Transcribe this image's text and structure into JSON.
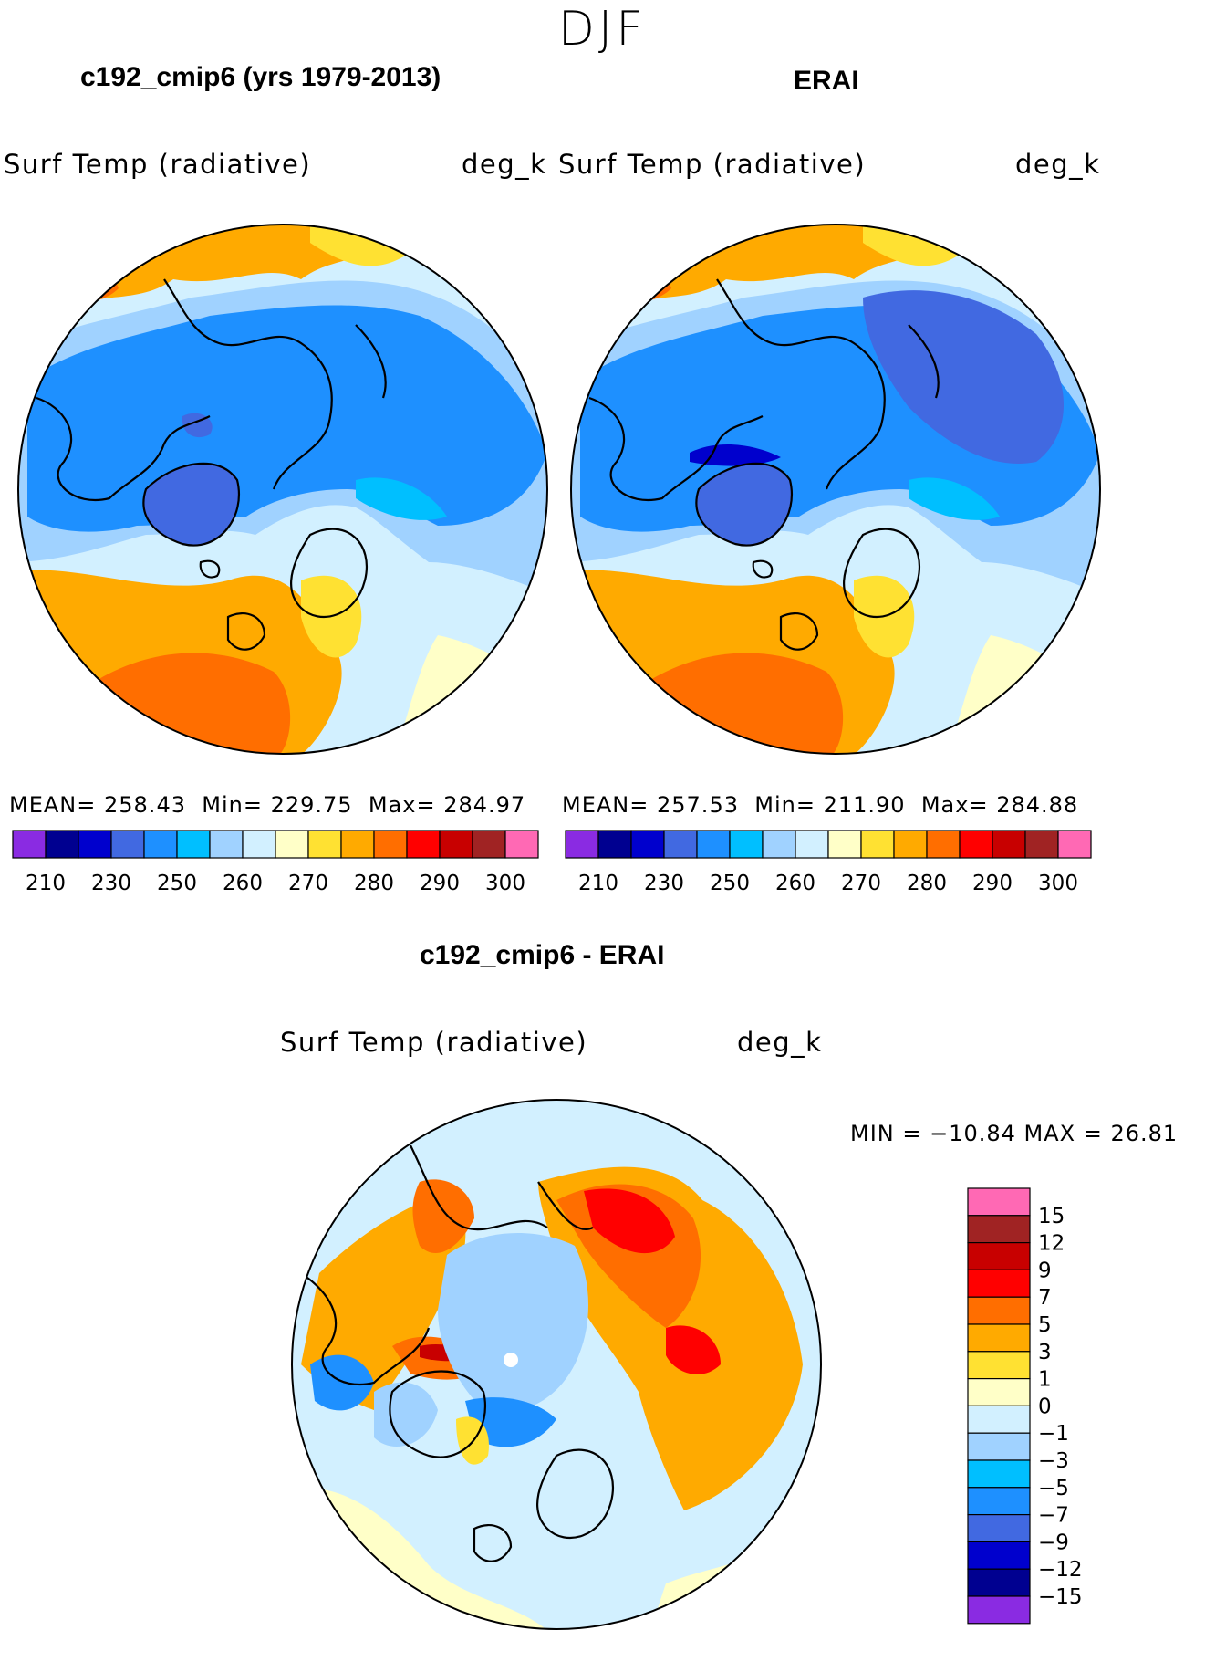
{
  "season": "DJF",
  "panels": [
    {
      "title": "c192_cmip6 (yrs 1979-2013)",
      "variable": "Surf Temp (radiative)",
      "units": "deg_k",
      "stats": {
        "mean_label": "MEAN=",
        "mean": "258.43",
        "min_label": "Min=",
        "min": "229.75",
        "max_label": "Max=",
        "max": "284.97"
      }
    },
    {
      "title": "ERAI",
      "variable": "Surf Temp (radiative)",
      "units": "deg_k",
      "stats": {
        "mean_label": "MEAN=",
        "mean": "257.53",
        "min_label": "Min=",
        "min": "211.90",
        "max_label": "Max=",
        "max": "284.88"
      }
    }
  ],
  "diff_panel": {
    "title": "c192_cmip6 - ERAI",
    "variable": "Surf Temp (radiative)",
    "units": "deg_k",
    "range_text": "MIN = −10.84 MAX =   26.81"
  },
  "abs_colorbar": {
    "colors": [
      "#8a2be2",
      "#000090",
      "#0000cd",
      "#4169e1",
      "#1e90ff",
      "#00bfff",
      "#a0d2ff",
      "#d2f0ff",
      "#ffffc8",
      "#ffe132",
      "#ffaa00",
      "#ff6e00",
      "#ff0000",
      "#c80000",
      "#a02323",
      "#ff69b4"
    ],
    "labels": [
      "210",
      "230",
      "250",
      "260",
      "270",
      "280",
      "290",
      "300"
    ]
  },
  "diff_colorbar": {
    "colors": [
      "#ff69b4",
      "#a02323",
      "#c80000",
      "#ff0000",
      "#ff6e00",
      "#ffaa00",
      "#ffe132",
      "#ffffc8",
      "#d2f0ff",
      "#a0d2ff",
      "#00bfff",
      "#1e90ff",
      "#4169e1",
      "#0000cd",
      "#000090",
      "#8a2be2"
    ],
    "labels": [
      "15",
      "12",
      "9",
      "7",
      "5",
      "3",
      "1",
      "0",
      "−1",
      "−3",
      "−5",
      "−7",
      "−9",
      "−12",
      "−15"
    ]
  }
}
